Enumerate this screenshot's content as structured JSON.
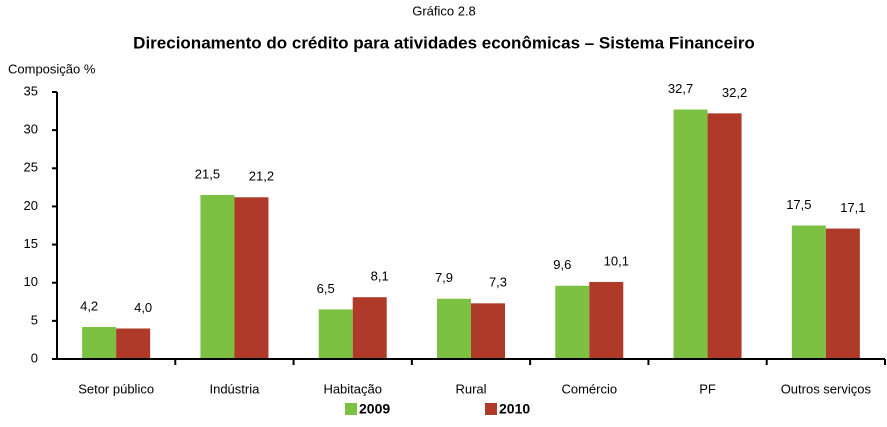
{
  "chart_data": {
    "type": "bar",
    "title": "Gráfico 2.8",
    "subtitle": "Direcionamento do crédito para atividades econômicas – Sistema Financeiro",
    "y_label": "Composição %",
    "categories": [
      "Setor público",
      "Indústria",
      "Habitação",
      "Rural",
      "Comércio",
      "PF",
      "Outros serviços"
    ],
    "series": [
      {
        "name": "2009",
        "color": "#7dc142",
        "values": [
          4.2,
          21.5,
          6.5,
          7.9,
          9.6,
          32.7,
          17.5
        ],
        "value_labels": [
          "4,2",
          "21,5",
          "6,5",
          "7,9",
          "9,6",
          "32,7",
          "17,5"
        ]
      },
      {
        "name": "2010",
        "color": "#b03a2a",
        "values": [
          4.0,
          21.2,
          8.1,
          7.3,
          10.1,
          32.2,
          17.1
        ],
        "value_labels": [
          "4,0",
          "21,2",
          "8,1",
          "7,3",
          "10,1",
          "32,2",
          "17,1"
        ]
      }
    ],
    "ylim": [
      0,
      35
    ],
    "yticks": [
      0,
      5,
      10,
      15,
      20,
      25,
      30,
      35
    ],
    "legend": "bottom"
  }
}
